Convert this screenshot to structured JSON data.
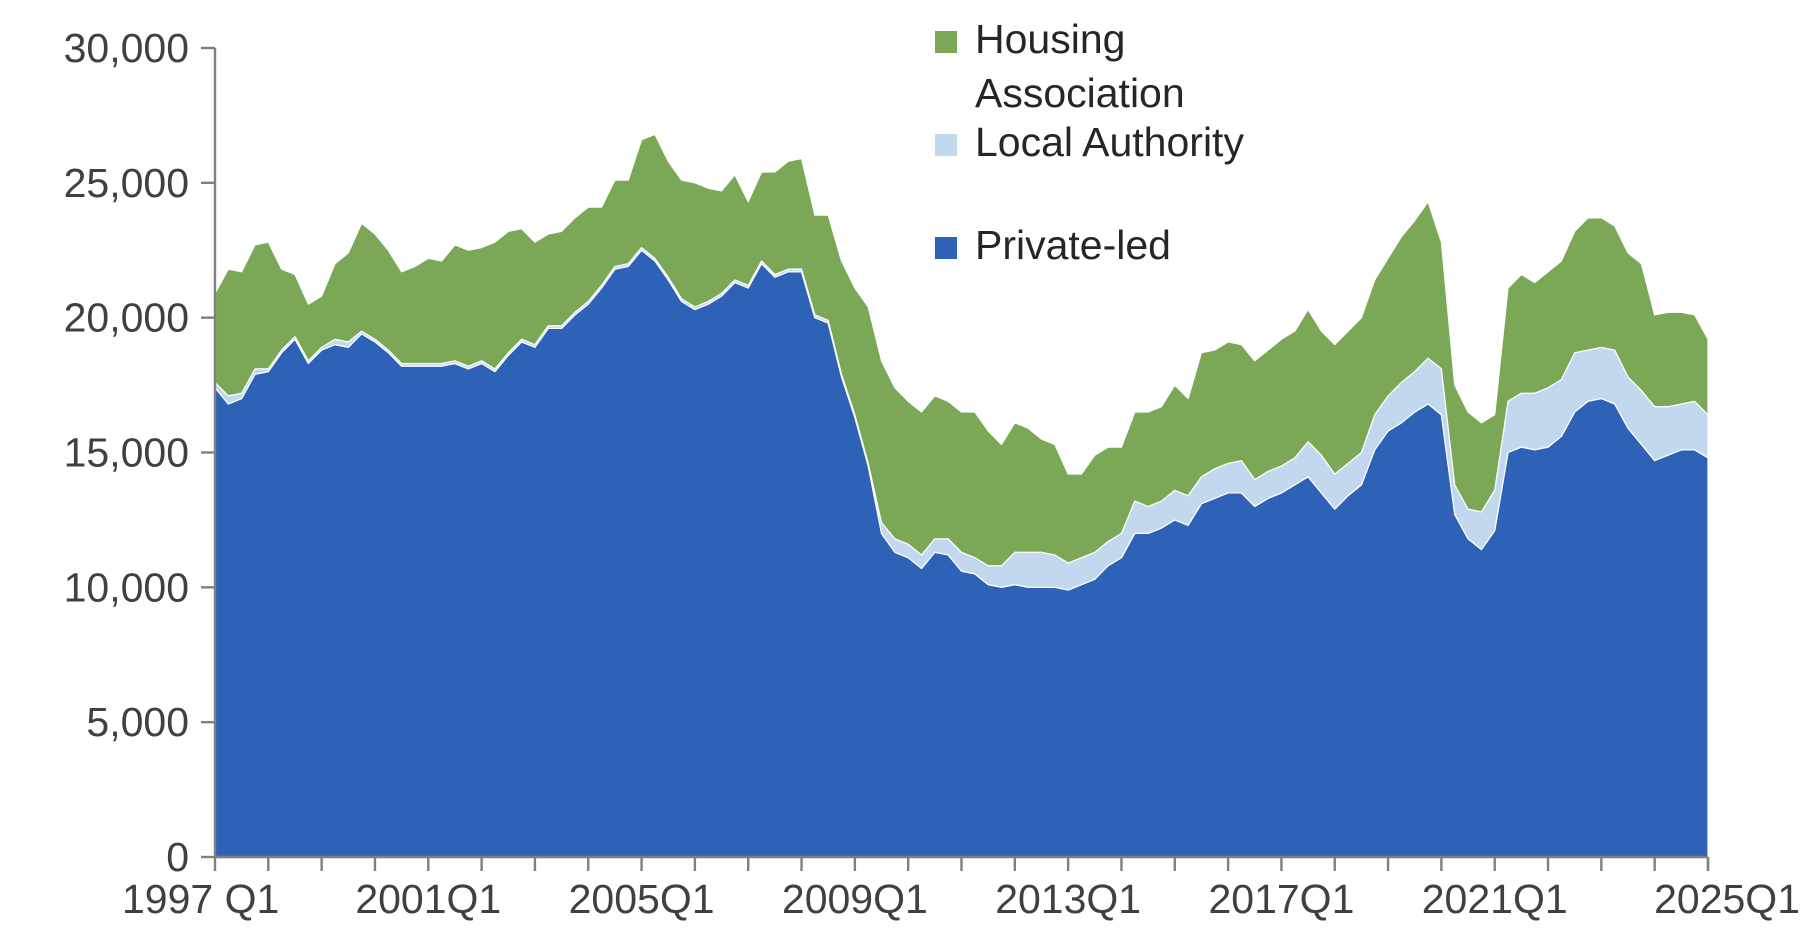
{
  "chart_data": {
    "type": "area",
    "stacked": true,
    "title": "",
    "xlabel": "",
    "ylabel": "",
    "ylim": [
      0,
      30000
    ],
    "y_ticks": [
      0,
      5000,
      10000,
      15000,
      20000,
      25000,
      30000
    ],
    "y_tick_labels": [
      "0",
      "5,000",
      "10,000",
      "15,000",
      "20,000",
      "25,000",
      "30,000"
    ],
    "x_start_year": 1997,
    "x_major_tick_every_quarters": 4,
    "x_tick_labels": [
      {
        "quarter_index": 0,
        "label": "1997 Q1"
      },
      {
        "quarter_index": 16,
        "label": "2001Q1"
      },
      {
        "quarter_index": 32,
        "label": "2005Q1"
      },
      {
        "quarter_index": 48,
        "label": "2009Q1"
      },
      {
        "quarter_index": 64,
        "label": "2013Q1"
      },
      {
        "quarter_index": 80,
        "label": "2017Q1"
      },
      {
        "quarter_index": 96,
        "label": "2021Q1"
      },
      {
        "quarter_index": 112,
        "label": "2025Q1"
      }
    ],
    "grid": false,
    "legend_position": "top-center",
    "legend": [
      {
        "name": "Housing Association",
        "lines": [
          "Housing",
          "Association"
        ],
        "color": "#7aa857"
      },
      {
        "name": "Local Authority",
        "lines": [
          "Local Authority"
        ],
        "color": "#c2d8ee"
      },
      {
        "name": "Private-led",
        "lines": [
          "Private-led"
        ],
        "color": "#2d62b6"
      }
    ],
    "series": [
      {
        "name": "Private-led",
        "color": "#2d62b6",
        "values": [
          17400,
          16800,
          17000,
          17900,
          18000,
          18700,
          19200,
          18300,
          18800,
          19000,
          18900,
          19400,
          19100,
          18700,
          18200,
          18200,
          18200,
          18200,
          18300,
          18100,
          18300,
          18000,
          18600,
          19100,
          18900,
          19600,
          19600,
          20100,
          20500,
          21100,
          21800,
          21900,
          22500,
          22100,
          21400,
          20600,
          20300,
          20500,
          20800,
          21300,
          21100,
          22000,
          21500,
          21700,
          21700,
          20000,
          19800,
          17800,
          16300,
          14500,
          12000,
          11300,
          11100,
          10700,
          11300,
          11200,
          10600,
          10500,
          10100,
          10000,
          10100,
          10000,
          10000,
          10000,
          9900,
          10100,
          10300,
          10800,
          11100,
          12000,
          12000,
          12200,
          12500,
          12300,
          13100,
          13300,
          13500,
          13500,
          13000,
          13300,
          13500,
          13800,
          14100,
          13500,
          12900,
          13400,
          13800,
          15100,
          15800,
          16100,
          16500,
          16800,
          16400,
          12700,
          11800,
          11400,
          12100,
          15000,
          15200,
          15100,
          15200,
          15600,
          16500,
          16900,
          17000,
          16800,
          15900,
          15300,
          14700,
          14900,
          15100,
          15100,
          14800
        ]
      },
      {
        "name": "Local Authority",
        "color": "#c2d8ee",
        "values": [
          200,
          300,
          200,
          200,
          100,
          100,
          100,
          100,
          100,
          200,
          200,
          100,
          100,
          100,
          100,
          100,
          100,
          100,
          100,
          100,
          100,
          100,
          100,
          100,
          100,
          100,
          100,
          100,
          100,
          100,
          100,
          100,
          100,
          100,
          100,
          100,
          100,
          100,
          100,
          100,
          100,
          100,
          100,
          100,
          100,
          100,
          100,
          100,
          100,
          100,
          400,
          500,
          500,
          500,
          500,
          600,
          700,
          600,
          700,
          800,
          1200,
          1300,
          1300,
          1200,
          1000,
          1000,
          1000,
          900,
          900,
          1200,
          1000,
          1000,
          1100,
          1100,
          1000,
          1100,
          1100,
          1200,
          1000,
          1000,
          1000,
          1000,
          1300,
          1400,
          1300,
          1200,
          1200,
          1300,
          1300,
          1500,
          1500,
          1700,
          1700,
          1100,
          1100,
          1400,
          1500,
          1900,
          2000,
          2100,
          2200,
          2100,
          2200,
          1900,
          1900,
          2000,
          1900,
          2000,
          2000,
          1800,
          1700,
          1800,
          1600
        ]
      },
      {
        "name": "Housing Association",
        "color": "#7aa857",
        "values": [
          3300,
          4700,
          4500,
          4600,
          4700,
          3000,
          2300,
          2100,
          1900,
          2800,
          3300,
          4000,
          3900,
          3700,
          3400,
          3600,
          3900,
          3800,
          4300,
          4300,
          4200,
          4700,
          4500,
          4100,
          3800,
          3400,
          3500,
          3500,
          3500,
          2900,
          3200,
          3100,
          4000,
          4600,
          4300,
          4400,
          4600,
          4200,
          3800,
          3900,
          3100,
          3300,
          3800,
          4000,
          4100,
          3700,
          3900,
          4200,
          4700,
          5800,
          6000,
          5600,
          5300,
          5300,
          5300,
          5100,
          5200,
          5400,
          5000,
          4500,
          4800,
          4600,
          4200,
          4100,
          3300,
          3100,
          3600,
          3500,
          3200,
          3300,
          3500,
          3500,
          3900,
          3600,
          4600,
          4400,
          4500,
          4300,
          4400,
          4500,
          4700,
          4700,
          4900,
          4600,
          4800,
          4900,
          5000,
          5000,
          5100,
          5400,
          5600,
          5800,
          4700,
          3700,
          3600,
          3300,
          2800,
          4200,
          4400,
          4100,
          4300,
          4400,
          4500,
          4900,
          4800,
          4600,
          4600,
          4700,
          3400,
          3500,
          3400,
          3200,
          2800
        ]
      }
    ]
  }
}
